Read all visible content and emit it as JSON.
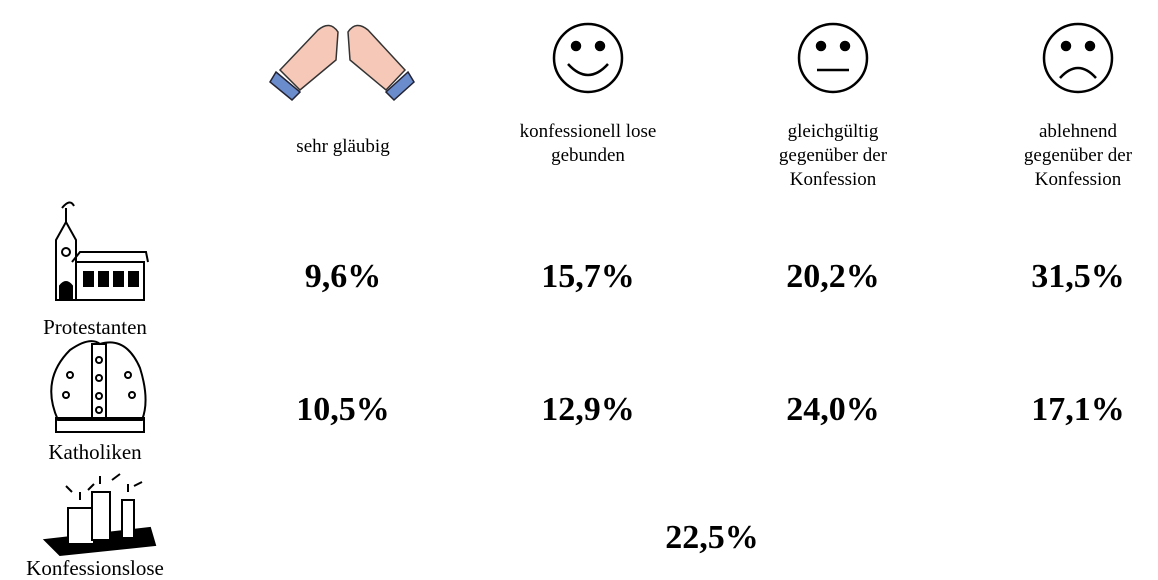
{
  "table": {
    "columns": [
      [
        "sehr gläubig"
      ],
      [
        "konfessionell lose",
        "gebunden"
      ],
      [
        "gleichgültig",
        "gegenüber der",
        "Konfession"
      ],
      [
        "ablehnend",
        "gegenüber der",
        "Konfession"
      ]
    ],
    "rows": [
      {
        "label": "Protestanten",
        "values": [
          "9,6%",
          "15,7%",
          "20,2%",
          "31,5%"
        ]
      },
      {
        "label": "Katholiken",
        "values": [
          "10,5%",
          "12,9%",
          "24,0%",
          "17,1%"
        ]
      },
      {
        "label": "Konfessionslose",
        "values": [
          "22,5%"
        ]
      }
    ]
  }
}
